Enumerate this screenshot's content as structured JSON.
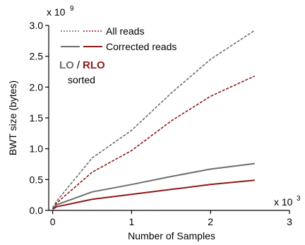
{
  "chart_data": {
    "type": "line",
    "xlabel": "Number of Samples",
    "ylabel": "BWT size (bytes)",
    "x_multiplier": "x 10",
    "x_exponent": "3",
    "y_multiplier": "x 10",
    "y_exponent": "9",
    "xlim": [
      -0.05,
      3.0
    ],
    "ylim": [
      0,
      3.0
    ],
    "x_ticks": [
      0,
      1,
      2,
      3
    ],
    "x_tick_labels": [
      "0",
      "1",
      "2",
      "3"
    ],
    "y_ticks": [
      0,
      0.5,
      1.0,
      1.5,
      2.0,
      2.5,
      3.0
    ],
    "y_tick_labels": [
      "0.0",
      "0.5",
      "1.0",
      "1.5",
      "2.0",
      "2.5",
      "3.0"
    ],
    "grid": false,
    "legend_position": "top-left",
    "legend": {
      "row1_label": "All reads",
      "row2_label": "Corrected reads",
      "lo_label": "LO",
      "slash": "/",
      "rlo_label": "RLO",
      "sorted_label": "sorted"
    },
    "series": [
      {
        "key": "lo_all",
        "color": "#6e6e6e",
        "dash": true,
        "x": [
          0,
          0.05,
          0.5,
          1.0,
          1.5,
          2.0,
          2.56
        ],
        "values": [
          0.04,
          0.15,
          0.85,
          1.3,
          1.9,
          2.45,
          2.92
        ]
      },
      {
        "key": "rlo_all",
        "color": "#8b1a1a",
        "dash": true,
        "x": [
          0,
          0.05,
          0.5,
          1.0,
          1.5,
          2.0,
          2.56
        ],
        "values": [
          0.03,
          0.12,
          0.62,
          0.97,
          1.45,
          1.85,
          2.18
        ]
      },
      {
        "key": "lo_corrected",
        "color": "#6e6e6e",
        "dash": false,
        "x": [
          0,
          0.05,
          0.5,
          1.0,
          1.5,
          2.0,
          2.56
        ],
        "values": [
          0.03,
          0.09,
          0.3,
          0.42,
          0.55,
          0.67,
          0.76
        ]
      },
      {
        "key": "rlo_corrected",
        "color": "#8b1a1a",
        "dash": false,
        "x": [
          0,
          0.05,
          0.5,
          1.0,
          1.5,
          2.0,
          2.56
        ],
        "values": [
          0.02,
          0.06,
          0.18,
          0.26,
          0.34,
          0.42,
          0.49
        ]
      }
    ]
  }
}
